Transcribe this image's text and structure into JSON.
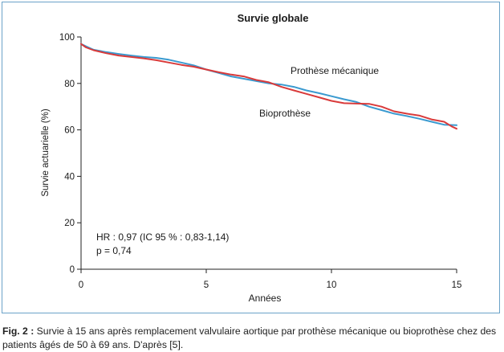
{
  "chart_data": {
    "type": "line",
    "title": "Survie globale",
    "xlabel": "Années",
    "ylabel": "Survie actuarielle (%)",
    "xlim": [
      0,
      15
    ],
    "ylim": [
      0,
      100
    ],
    "xticks": [
      "0",
      "5",
      "10",
      "15"
    ],
    "yticks": [
      "0",
      "20",
      "40",
      "60",
      "80",
      "100"
    ],
    "grid": false,
    "legend": "inline labels next to curves",
    "annotations": [
      "HR : 0,97 (IC 95 % : 0,83-1,14)",
      "p = 0,74"
    ],
    "series": [
      {
        "name": "Prothèse mécanique",
        "color": "#3a9ad0",
        "x": [
          0,
          0.2,
          0.5,
          1,
          1.5,
          2,
          2.5,
          3,
          3.5,
          4,
          4.5,
          5,
          5.5,
          6,
          6.5,
          7,
          7.5,
          8,
          8.5,
          9,
          9.5,
          10,
          10.5,
          11,
          11.5,
          12,
          12.5,
          13,
          13.5,
          14,
          14.5,
          15
        ],
        "y": [
          97,
          96,
          94.5,
          93.5,
          92.7,
          92,
          91.4,
          91,
          90.2,
          89,
          87.8,
          86,
          84.5,
          83,
          82,
          81,
          80,
          79.5,
          78.5,
          77,
          75.8,
          74.5,
          73.2,
          72,
          70,
          68.5,
          67,
          66,
          64.8,
          63.5,
          62.2,
          62
        ]
      },
      {
        "name": "Bioprothèse",
        "color": "#d93a3a",
        "x": [
          0,
          0.2,
          0.5,
          1,
          1.5,
          2,
          2.5,
          3,
          3.5,
          4,
          4.5,
          5,
          5.5,
          6,
          6.5,
          7,
          7.5,
          8,
          8.5,
          9,
          9.5,
          10,
          10.5,
          11,
          11.5,
          12,
          12.5,
          13,
          13.5,
          14,
          14.5,
          14.8,
          15
        ],
        "y": [
          97,
          95.5,
          94.3,
          93,
          92,
          91.4,
          90.8,
          90,
          89,
          88,
          87.2,
          86,
          84.8,
          83.8,
          83,
          81.5,
          80.5,
          78.5,
          77,
          75.5,
          74,
          72.5,
          71.5,
          71.3,
          71.2,
          70,
          68,
          67,
          66.2,
          64.5,
          63.5,
          61.5,
          60.5
        ]
      }
    ]
  },
  "caption": {
    "label": "Fig. 2 :",
    "text": " Survie à 15 ans après remplacement valvulaire aortique par prothèse mécanique ou bioprothèse chez des patients âgés de 50 à 69 ans. D'après [5]."
  }
}
